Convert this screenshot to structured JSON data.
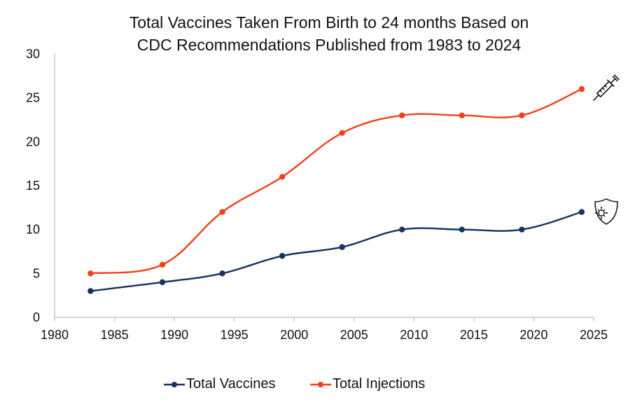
{
  "chart_data": {
    "type": "line",
    "title_line1": "Total Vaccines Taken From Birth to 24 months Based on",
    "title_line2": "CDC Recommendations Published from 1983 to 2024",
    "xlabel": "",
    "ylabel": "",
    "xlim": [
      1980,
      2025
    ],
    "ylim": [
      0,
      30
    ],
    "xticks": [
      "1980",
      "1985",
      "1990",
      "1995",
      "2000",
      "2005",
      "2010",
      "2015",
      "2020",
      "2025"
    ],
    "yticks": [
      "0",
      "5",
      "10",
      "15",
      "20",
      "25",
      "30"
    ],
    "grid": false,
    "legend_position": "bottom",
    "series": [
      {
        "name": "Total Vaccines",
        "color": "#17325f",
        "x": [
          1983,
          1989,
          1994,
          1999,
          2004,
          2009,
          2014,
          2019,
          2024
        ],
        "y": [
          3,
          4,
          5,
          7,
          8,
          10,
          10,
          10,
          12
        ]
      },
      {
        "name": "Total Injections",
        "color": "#f0421a",
        "x": [
          1983,
          1989,
          1994,
          1999,
          2004,
          2009,
          2014,
          2019,
          2024
        ],
        "y": [
          5,
          6,
          12,
          16,
          21,
          23,
          23,
          23,
          26
        ]
      }
    ],
    "annotations": [
      {
        "icon": "syringe-icon",
        "series": "Total Injections"
      },
      {
        "icon": "shield-virus-icon",
        "series": "Total Vaccines"
      }
    ]
  }
}
